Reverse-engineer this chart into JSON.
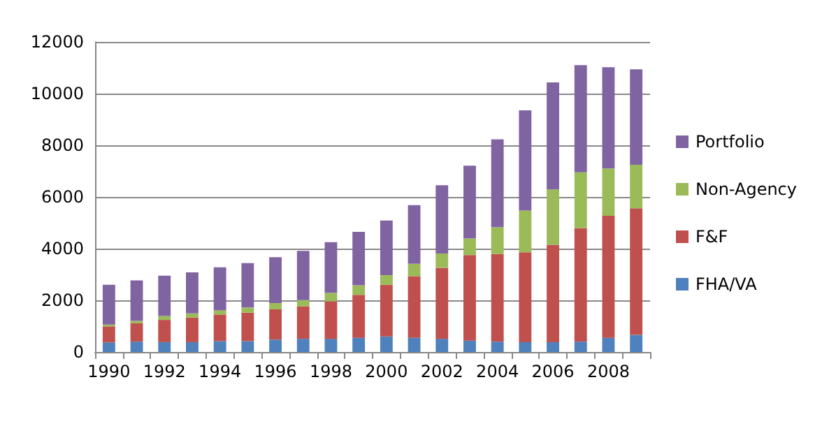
{
  "chart_data": {
    "type": "bar",
    "stacked": true,
    "categories": [
      "1990",
      null,
      "1992",
      null,
      "1994",
      null,
      "1996",
      null,
      "1998",
      null,
      "2000",
      null,
      "2002",
      null,
      "2004",
      null,
      "2006",
      null,
      "2008",
      null
    ],
    "series": [
      {
        "name": "FHA/VA",
        "color": "#4f81bd",
        "values": [
          370,
          400,
          380,
          380,
          420,
          420,
          480,
          510,
          510,
          550,
          600,
          550,
          510,
          440,
          400,
          380,
          380,
          400,
          550,
          660
        ]
      },
      {
        "name": "F&F",
        "color": "#c0504d",
        "values": [
          620,
          710,
          860,
          950,
          1030,
          1100,
          1170,
          1260,
          1450,
          1660,
          2000,
          2380,
          2750,
          3310,
          3390,
          3480,
          3770,
          4390,
          4720,
          4900
        ]
      },
      {
        "name": "Non-Agency",
        "color": "#9bbb59",
        "values": [
          70,
          90,
          150,
          160,
          160,
          200,
          240,
          240,
          330,
          370,
          370,
          480,
          550,
          640,
          1040,
          1610,
          2140,
          2160,
          1830,
          1680
        ]
      },
      {
        "name": "Portfolio",
        "color": "#8064a2",
        "values": [
          1540,
          1570,
          1560,
          1590,
          1670,
          1720,
          1780,
          1900,
          1960,
          2070,
          2120,
          2270,
          2640,
          2820,
          3400,
          3880,
          4140,
          4150,
          3920,
          3700
        ]
      }
    ],
    "ylim": [
      0,
      12000
    ],
    "yticks": [
      0,
      2000,
      4000,
      6000,
      8000,
      10000,
      12000
    ],
    "grid": "y",
    "legend": "right"
  }
}
